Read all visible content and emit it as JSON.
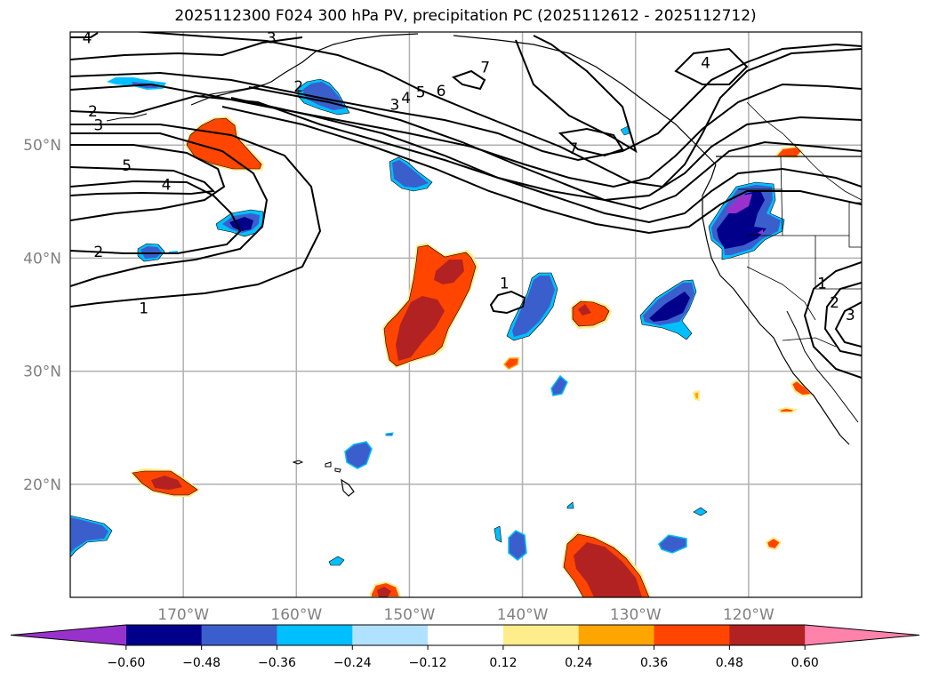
{
  "title": "2025112300 F024 300 hPa PV, precipitation PC (2025112612 - 2025112712)",
  "map": {
    "projection": "PlateCarree",
    "extent": {
      "lon_min": -180,
      "lon_max": -110,
      "lat_min": 10,
      "lat_max": 60
    },
    "gridlines": {
      "color": "#b0b0b0"
    },
    "lat_ticks": [
      {
        "value": 50,
        "label": "50°N"
      },
      {
        "value": 40,
        "label": "40°N"
      },
      {
        "value": 30,
        "label": "30°N"
      },
      {
        "value": 20,
        "label": "20°N"
      }
    ],
    "lon_ticks": [
      {
        "value": -170,
        "label": "170°W"
      },
      {
        "value": -160,
        "label": "160°W"
      },
      {
        "value": -150,
        "label": "150°W"
      },
      {
        "value": -140,
        "label": "140°W"
      },
      {
        "value": -130,
        "label": "130°W"
      },
      {
        "value": -120,
        "label": "120°W"
      }
    ],
    "pv_contour_labels": [
      {
        "text": "4",
        "lon": -178.5,
        "lat": 59.5
      },
      {
        "text": "3",
        "lon": -162.2,
        "lat": 59.5
      },
      {
        "text": "2",
        "lon": -178,
        "lat": 53.0
      },
      {
        "text": "3",
        "lon": -177.5,
        "lat": 51.8
      },
      {
        "text": "2",
        "lon": -159.8,
        "lat": 55.2
      },
      {
        "text": "5",
        "lon": -175,
        "lat": 48.2
      },
      {
        "text": "4",
        "lon": -171.5,
        "lat": 46.5
      },
      {
        "text": "2",
        "lon": -177.5,
        "lat": 40.6
      },
      {
        "text": "1",
        "lon": -173.5,
        "lat": 35.6
      },
      {
        "text": "3",
        "lon": -151.3,
        "lat": 53.6
      },
      {
        "text": "4",
        "lon": -150.3,
        "lat": 54.2
      },
      {
        "text": "5",
        "lon": -149,
        "lat": 54.7
      },
      {
        "text": "6",
        "lon": -147.2,
        "lat": 54.8
      },
      {
        "text": "7",
        "lon": -143.3,
        "lat": 56.9
      },
      {
        "text": "7",
        "lon": -135.5,
        "lat": 49.7
      },
      {
        "text": "4",
        "lon": -123.8,
        "lat": 57.3
      },
      {
        "text": "1",
        "lon": -141.6,
        "lat": 37.8
      },
      {
        "text": "1",
        "lon": -113.5,
        "lat": 37.8
      },
      {
        "text": "2",
        "lon": -112.4,
        "lat": 36.1
      },
      {
        "text": "3",
        "lon": -111,
        "lat": 35.0
      }
    ]
  },
  "colorbar": {
    "levels": [
      -0.6,
      -0.48,
      -0.36,
      -0.24,
      -0.12,
      0.12,
      0.24,
      0.36,
      0.48,
      0.6
    ],
    "tick_labels": [
      "−0.60",
      "−0.48",
      "−0.36",
      "−0.24",
      "−0.12",
      "0.12",
      "0.24",
      "0.36",
      "0.48",
      "0.60"
    ],
    "colors": [
      "#9932cc",
      "#00008b",
      "#3a5fcd",
      "#00bfff",
      "#b0e2ff",
      "#ffffff",
      "#ffec8b",
      "#ffa500",
      "#ff4500",
      "#b22222",
      "#ff82ab"
    ],
    "extend": "both"
  },
  "precip_anomalies": [
    {
      "name": "aleutian-west-positive",
      "sign": "positive",
      "max_class": 0.36
    },
    {
      "name": "gulf-alaska-negative",
      "sign": "negative",
      "max_class": -0.36
    },
    {
      "name": "central-pacific-positive",
      "sign": "positive",
      "max_class": 0.48
    },
    {
      "name": "pacific-northwest-negative",
      "sign": "negative",
      "max_class": -0.6
    },
    {
      "name": "subtropical-east-negative",
      "sign": "negative",
      "max_class": -0.48
    },
    {
      "name": "tropical-south-positive",
      "sign": "positive",
      "max_class": 0.48
    },
    {
      "name": "tropical-west-positive",
      "sign": "positive",
      "max_class": 0.48
    }
  ]
}
